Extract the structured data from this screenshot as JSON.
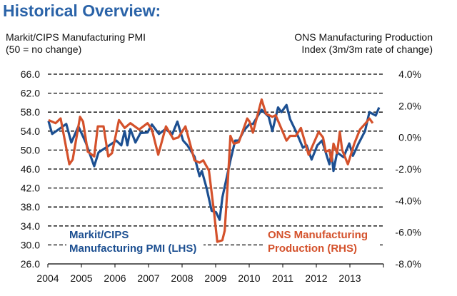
{
  "title": "Historical Overview:",
  "left_axis_title": [
    "Markit/CIPS Manufacturing PMI",
    "(50 = no change)"
  ],
  "right_axis_title": [
    "ONS Manufacturing Production",
    "Index (3m/3m rate of change)"
  ],
  "chart_data": {
    "type": "line",
    "title": "Historical Overview:",
    "x_ticks": [
      "2004",
      "2005",
      "2006",
      "2007",
      "2008",
      "2009",
      "2010",
      "2011",
      "2012",
      "2013"
    ],
    "xlim": [
      2004,
      2014
    ],
    "y_left": {
      "ticks": [
        "66.0",
        "62.0",
        "58.0",
        "54.0",
        "50.0",
        "46.0",
        "42.0",
        "38.0",
        "34.0",
        "30.0",
        "26.0"
      ],
      "lim": [
        26,
        66
      ]
    },
    "y_right": {
      "ticks": [
        "4.0%",
        "2.0%",
        "0.0%",
        "-2.0%",
        "-4.0%",
        "-6.0%",
        "-8.0%"
      ],
      "lim": [
        -8,
        4
      ]
    },
    "grid": true,
    "colors": {
      "pmi": "#1c4f91",
      "ons": "#d4512b"
    },
    "series": [
      {
        "name": "Markit/CIPS Manufacturing PMI (LHS)",
        "legend": [
          "Markit/CIPS",
          "Manufacturing PMI (LHS)"
        ],
        "axis": "left",
        "points": [
          [
            2004.02,
            56.1
          ],
          [
            2004.13,
            53.4
          ],
          [
            2004.55,
            55.5
          ],
          [
            2004.7,
            51.6
          ],
          [
            2004.91,
            55.0
          ],
          [
            2005.13,
            51.6
          ],
          [
            2005.38,
            46.6
          ],
          [
            2005.51,
            49.5
          ],
          [
            2005.83,
            51.0
          ],
          [
            2006.04,
            52.0
          ],
          [
            2006.19,
            51.0
          ],
          [
            2006.29,
            54.0
          ],
          [
            2006.37,
            51.0
          ],
          [
            2006.46,
            54.4
          ],
          [
            2006.61,
            51.6
          ],
          [
            2006.76,
            53.6
          ],
          [
            2006.97,
            53.7
          ],
          [
            2007.1,
            55.4
          ],
          [
            2007.31,
            53.4
          ],
          [
            2007.5,
            54.4
          ],
          [
            2007.71,
            53.4
          ],
          [
            2007.86,
            56.0
          ],
          [
            2008.03,
            52.0
          ],
          [
            2008.16,
            51.0
          ],
          [
            2008.37,
            48.6
          ],
          [
            2008.52,
            44.5
          ],
          [
            2008.59,
            45.6
          ],
          [
            2008.73,
            42.0
          ],
          [
            2008.88,
            37.2
          ],
          [
            2009.01,
            36.9
          ],
          [
            2009.12,
            35.3
          ],
          [
            2009.2,
            40.0
          ],
          [
            2009.44,
            47.8
          ],
          [
            2009.58,
            52.0
          ],
          [
            2009.69,
            52.0
          ],
          [
            2009.84,
            54.1
          ],
          [
            2010.01,
            55.5
          ],
          [
            2010.11,
            55.5
          ],
          [
            2010.37,
            58.5
          ],
          [
            2010.58,
            57.0
          ],
          [
            2010.69,
            54.0
          ],
          [
            2010.86,
            59.0
          ],
          [
            2010.96,
            58.0
          ],
          [
            2011.11,
            59.5
          ],
          [
            2011.22,
            56.5
          ],
          [
            2011.39,
            54.0
          ],
          [
            2011.6,
            50.5
          ],
          [
            2011.71,
            51.0
          ],
          [
            2011.86,
            48.0
          ],
          [
            2012.03,
            51.0
          ],
          [
            2012.17,
            52.0
          ],
          [
            2012.39,
            47.0
          ],
          [
            2012.45,
            49.5
          ],
          [
            2012.51,
            45.6
          ],
          [
            2012.62,
            49.5
          ],
          [
            2012.81,
            48.5
          ],
          [
            2012.98,
            51.4
          ],
          [
            2013.09,
            48.8
          ],
          [
            2013.26,
            51.4
          ],
          [
            2013.45,
            54.0
          ],
          [
            2013.58,
            58.0
          ],
          [
            2013.77,
            57.3
          ],
          [
            2013.87,
            59.0
          ]
        ]
      },
      {
        "name": "ONS Manufacturing Production (RHS)",
        "legend": [
          "ONS Manufacturing",
          "Production (RHS)"
        ],
        "axis": "right",
        "points": [
          [
            2004.02,
            1.1
          ],
          [
            2004.23,
            0.9
          ],
          [
            2004.38,
            1.2
          ],
          [
            2004.64,
            -1.7
          ],
          [
            2004.74,
            -1.4
          ],
          [
            2004.96,
            1.3
          ],
          [
            2005.05,
            1.0
          ],
          [
            2005.19,
            -0.9
          ],
          [
            2005.38,
            -1.2
          ],
          [
            2005.49,
            0.7
          ],
          [
            2005.66,
            0.7
          ],
          [
            2005.8,
            -1.2
          ],
          [
            2005.91,
            -1.0
          ],
          [
            2006.12,
            1.1
          ],
          [
            2006.29,
            0.6
          ],
          [
            2006.46,
            0.9
          ],
          [
            2006.72,
            0.5
          ],
          [
            2006.97,
            0.9
          ],
          [
            2007.1,
            0.5
          ],
          [
            2007.29,
            -1.1
          ],
          [
            2007.52,
            0.7
          ],
          [
            2007.74,
            -0.1
          ],
          [
            2007.89,
            0.0
          ],
          [
            2008.1,
            0.7
          ],
          [
            2008.37,
            -1.45
          ],
          [
            2008.52,
            -1.6
          ],
          [
            2008.63,
            -1.45
          ],
          [
            2008.8,
            -2.1
          ],
          [
            2008.95,
            -4.7
          ],
          [
            2009.05,
            -6.6
          ],
          [
            2009.2,
            -6.5
          ],
          [
            2009.27,
            -5.9
          ],
          [
            2009.35,
            -3.3
          ],
          [
            2009.44,
            0.1
          ],
          [
            2009.54,
            -0.4
          ],
          [
            2009.69,
            -0.3
          ],
          [
            2009.84,
            0.6
          ],
          [
            2009.94,
            1.2
          ],
          [
            2010.01,
            1.0
          ],
          [
            2010.11,
            0.3
          ],
          [
            2010.37,
            2.4
          ],
          [
            2010.5,
            1.5
          ],
          [
            2010.69,
            1.3
          ],
          [
            2010.79,
            1.4
          ],
          [
            2011.11,
            -0.2
          ],
          [
            2011.22,
            0.1
          ],
          [
            2011.39,
            0.1
          ],
          [
            2011.54,
            0.6
          ],
          [
            2011.77,
            -1.1
          ],
          [
            2012.07,
            0.35
          ],
          [
            2012.2,
            0.0
          ],
          [
            2012.28,
            -0.9
          ],
          [
            2012.39,
            -0.8
          ],
          [
            2012.45,
            -1.5
          ],
          [
            2012.51,
            -0.4
          ],
          [
            2012.62,
            -1.0
          ],
          [
            2012.7,
            0.35
          ],
          [
            2012.77,
            -0.8
          ],
          [
            2012.94,
            -1.7
          ],
          [
            2013.13,
            -0.4
          ],
          [
            2013.3,
            0.5
          ],
          [
            2013.47,
            0.9
          ],
          [
            2013.58,
            1.2
          ],
          [
            2013.68,
            0.9
          ]
        ]
      }
    ]
  }
}
